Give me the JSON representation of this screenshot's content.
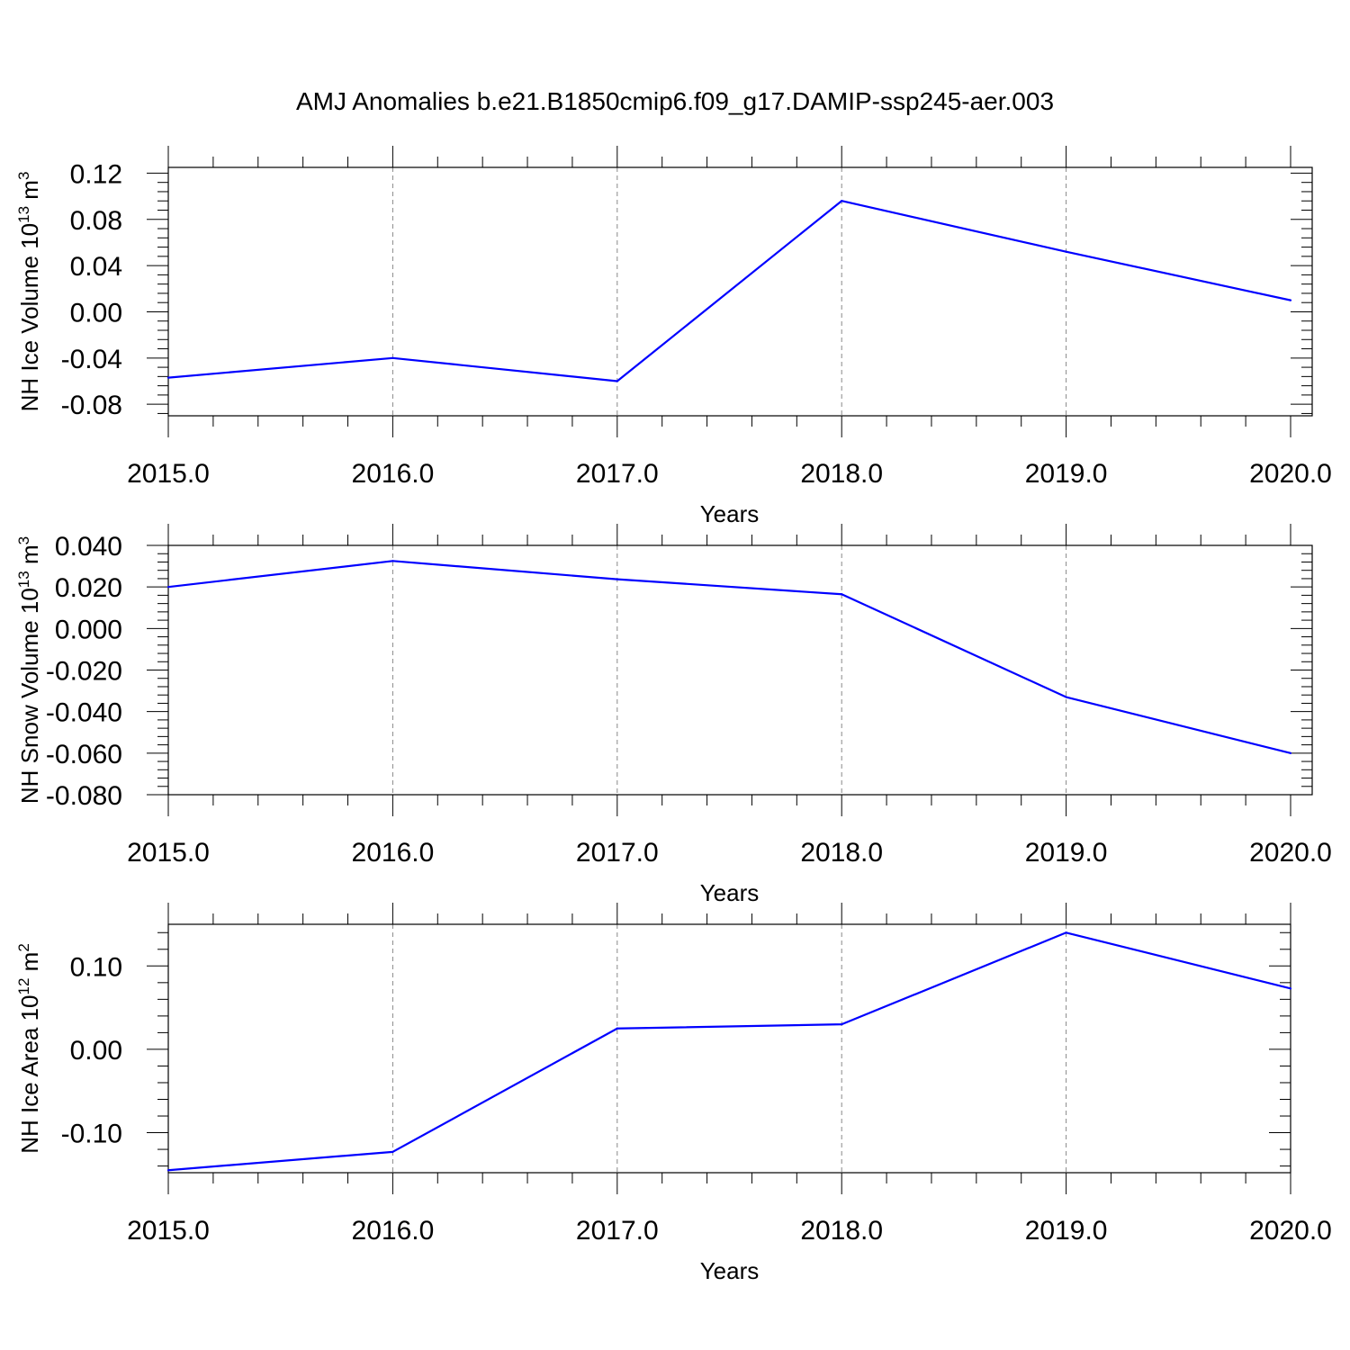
{
  "title": "AMJ Anomalies b.e21.B1850cmip6.f09_g17.DAMIP-ssp245-aer.003",
  "series_color": "#0000ff",
  "chart_data": [
    {
      "type": "line",
      "ylabel": "NH Ice Volume 10",
      "ylabel_exp": "13",
      "ylabel_unit": " m",
      "ylabel_unit_exp": "3",
      "xlabel": "Years",
      "x": [
        2015,
        2016,
        2017,
        2018,
        2019,
        2020
      ],
      "y": [
        -0.057,
        -0.04,
        -0.06,
        0.096,
        0.052,
        0.01
      ],
      "xlim": [
        2015,
        2020
      ],
      "ylim": [
        -0.09,
        0.125
      ],
      "yticks": [
        0.12,
        0.08,
        0.04,
        0.0,
        -0.04,
        -0.08
      ],
      "ytick_labels": [
        "0.12",
        "0.08",
        "0.04",
        "0.00",
        "-0.04",
        "-0.08"
      ],
      "xticks": [
        2015,
        2016,
        2017,
        2018,
        2019,
        2020
      ],
      "xtick_labels": [
        "2015.0",
        "2016.0",
        "2017.0",
        "2018.0",
        "2019.0",
        "2020.0"
      ],
      "grid": "vertical dashed"
    },
    {
      "type": "line",
      "ylabel": "NH Snow Volume 10",
      "ylabel_exp": "13",
      "ylabel_unit": " m",
      "ylabel_unit_exp": "3",
      "xlabel": "Years",
      "x": [
        2015,
        2016,
        2017,
        2018,
        2019,
        2020
      ],
      "y": [
        0.02,
        0.0325,
        0.0237,
        0.0165,
        -0.033,
        -0.06
      ],
      "xlim": [
        2015,
        2020
      ],
      "ylim": [
        -0.08,
        0.04
      ],
      "yticks": [
        0.04,
        0.02,
        0.0,
        -0.02,
        -0.04,
        -0.06,
        -0.08
      ],
      "ytick_labels": [
        "0.040",
        "0.020",
        "0.000",
        "-0.020",
        "-0.040",
        "-0.060",
        "-0.080"
      ],
      "xticks": [
        2015,
        2016,
        2017,
        2018,
        2019,
        2020
      ],
      "xtick_labels": [
        "2015.0",
        "2016.0",
        "2017.0",
        "2018.0",
        "2019.0",
        "2020.0"
      ],
      "grid": "vertical dashed"
    },
    {
      "type": "line",
      "ylabel": "NH Ice Area 10",
      "ylabel_exp": "12",
      "ylabel_unit": " m",
      "ylabel_unit_exp": "2",
      "xlabel": "Years",
      "x": [
        2015,
        2016,
        2017,
        2018,
        2019,
        2020
      ],
      "y": [
        -0.145,
        -0.123,
        0.025,
        0.03,
        0.14,
        0.073
      ],
      "xlim": [
        2015,
        2020
      ],
      "ylim": [
        -0.148,
        0.15
      ],
      "yticks": [
        0.1,
        0.0,
        -0.1
      ],
      "ytick_labels": [
        "0.10",
        "0.00",
        "-0.10"
      ],
      "xticks": [
        2015,
        2016,
        2017,
        2018,
        2019,
        2020
      ],
      "xtick_labels": [
        "2015.0",
        "2016.0",
        "2017.0",
        "2018.0",
        "2019.0",
        "2020.0"
      ],
      "grid": "vertical dashed"
    }
  ]
}
